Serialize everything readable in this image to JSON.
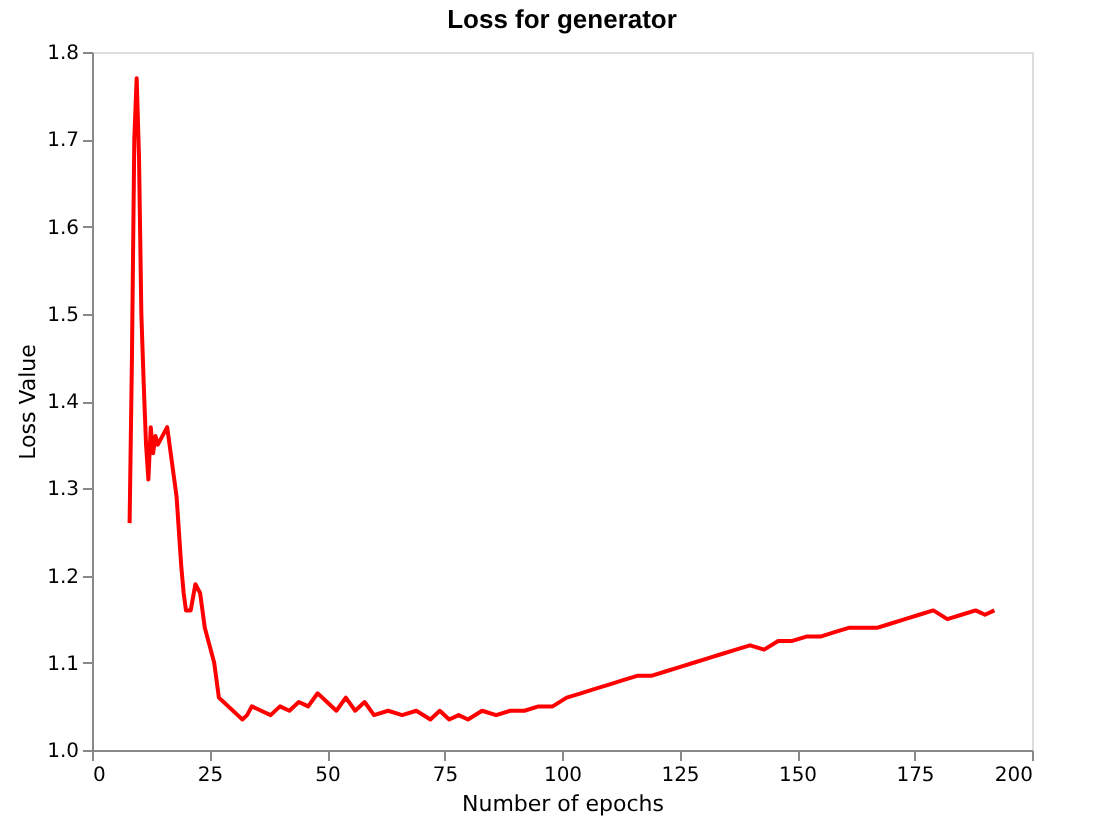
{
  "chart_data": {
    "type": "line",
    "title": "Loss for generator",
    "xlabel": "Number of epochs",
    "ylabel": "Loss Value",
    "x": [
      8,
      8.5,
      9,
      9.5,
      10,
      10.5,
      11,
      11.5,
      12,
      12.5,
      13,
      13.5,
      14,
      15,
      16,
      17,
      18,
      19,
      19.5,
      20,
      21,
      22,
      23,
      24,
      25,
      26,
      27,
      28,
      29,
      30,
      31,
      32,
      33,
      34,
      36,
      38,
      40,
      42,
      44,
      46,
      48,
      49,
      50,
      52,
      54,
      56,
      58,
      60,
      63,
      66,
      69,
      72,
      74,
      76,
      78,
      80,
      83,
      86,
      89,
      92,
      95,
      98,
      101,
      104,
      107,
      110,
      113,
      116,
      119,
      122,
      125,
      128,
      131,
      134,
      137,
      140,
      143,
      146,
      149,
      152,
      155,
      158,
      161,
      164,
      167,
      170,
      173,
      176,
      179,
      182,
      185,
      188,
      190,
      192
    ],
    "series": [
      {
        "color": "#ff0000",
        "values": [
          1.26,
          1.45,
          1.7,
          1.77,
          1.68,
          1.5,
          1.42,
          1.35,
          1.31,
          1.37,
          1.34,
          1.36,
          1.35,
          1.36,
          1.37,
          1.33,
          1.29,
          1.21,
          1.18,
          1.16,
          1.16,
          1.19,
          1.18,
          1.14,
          1.12,
          1.1,
          1.06,
          1.055,
          1.05,
          1.045,
          1.04,
          1.035,
          1.04,
          1.05,
          1.045,
          1.04,
          1.05,
          1.045,
          1.055,
          1.05,
          1.065,
          1.06,
          1.055,
          1.045,
          1.06,
          1.045,
          1.055,
          1.04,
          1.045,
          1.04,
          1.045,
          1.035,
          1.045,
          1.035,
          1.04,
          1.035,
          1.045,
          1.04,
          1.045,
          1.045,
          1.05,
          1.05,
          1.06,
          1.065,
          1.07,
          1.075,
          1.08,
          1.085,
          1.085,
          1.09,
          1.095,
          1.1,
          1.105,
          1.11,
          1.115,
          1.12,
          1.115,
          1.125,
          1.125,
          1.13,
          1.13,
          1.135,
          1.14,
          1.14,
          1.14,
          1.145,
          1.15,
          1.155,
          1.16,
          1.15,
          1.155,
          1.16,
          1.155,
          1.16
        ]
      }
    ],
    "xlim": [
      0,
      200
    ],
    "ylim": [
      1.0,
      1.8
    ],
    "xticks": [
      0,
      25,
      50,
      75,
      100,
      125,
      150,
      175,
      200
    ],
    "yticks": [
      {
        "value": 1.0,
        "label": "1.0"
      },
      {
        "value": 1.1,
        "label": "1.1"
      },
      {
        "value": 1.2,
        "label": "1.2"
      },
      {
        "value": 1.3,
        "label": "1.3"
      },
      {
        "value": 1.4,
        "label": "1.4"
      },
      {
        "value": 1.5,
        "label": "1.5"
      },
      {
        "value": 1.6,
        "label": "1.6"
      },
      {
        "value": 1.7,
        "label": "1.7"
      },
      {
        "value": 1.8,
        "label": "1.8"
      }
    ],
    "grid": false
  }
}
